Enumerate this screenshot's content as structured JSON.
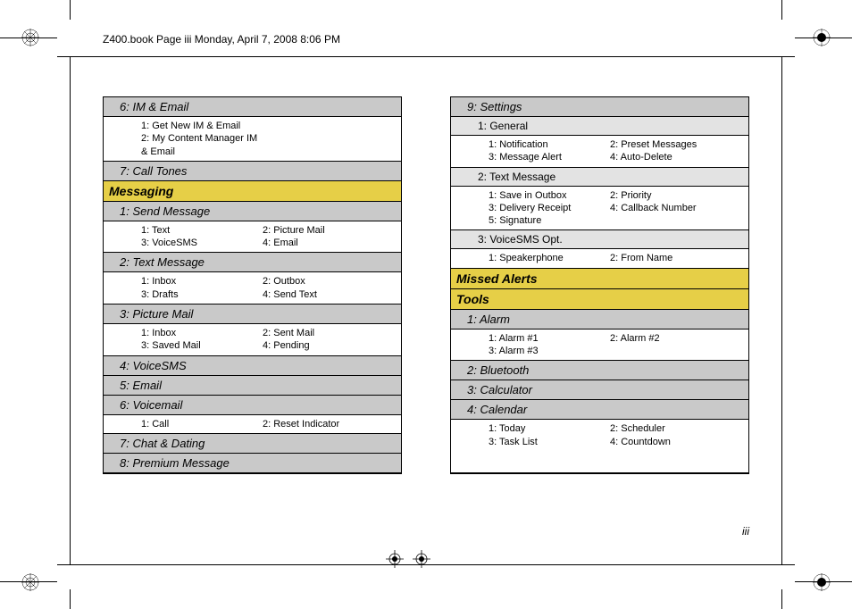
{
  "header": "Z400.book  Page iii  Monday, April 7, 2008  8:06 PM",
  "pageNum": "iii",
  "left": {
    "rows": [
      {
        "type": "lvl1",
        "text": "6: IM & Email"
      },
      {
        "type": "items",
        "cells": [
          "1: Get New IM & Email",
          "",
          "2: My Content Manager IM & Email"
        ]
      },
      {
        "type": "lvl1",
        "text": "7: Call Tones"
      },
      {
        "type": "cat",
        "text": "Messaging"
      },
      {
        "type": "lvl1",
        "text": "1: Send Message"
      },
      {
        "type": "items",
        "cells": [
          "1: Text",
          "2: Picture Mail",
          "3: VoiceSMS",
          "4: Email"
        ]
      },
      {
        "type": "lvl1",
        "text": "2: Text Message"
      },
      {
        "type": "items",
        "cells": [
          "1: Inbox",
          "2: Outbox",
          "3: Drafts",
          "4: Send Text"
        ]
      },
      {
        "type": "lvl1",
        "text": "3: Picture Mail"
      },
      {
        "type": "items",
        "cells": [
          "1: Inbox",
          "2: Sent Mail",
          "3: Saved Mail",
          "4: Pending"
        ]
      },
      {
        "type": "lvl1",
        "text": "4: VoiceSMS"
      },
      {
        "type": "lvl1",
        "text": "5: Email"
      },
      {
        "type": "lvl1",
        "text": "6: Voicemail"
      },
      {
        "type": "items",
        "cells": [
          "1: Call",
          "2: Reset Indicator"
        ]
      },
      {
        "type": "lvl1",
        "text": "7: Chat & Dating"
      },
      {
        "type": "lvl1",
        "text": "8: Premium Message"
      }
    ]
  },
  "right": {
    "rows": [
      {
        "type": "lvl1",
        "text": "9: Settings"
      },
      {
        "type": "lvl2",
        "text": "1: General"
      },
      {
        "type": "items",
        "cells": [
          "1: Notification",
          "2: Preset Messages",
          "3: Message Alert",
          "4: Auto-Delete"
        ]
      },
      {
        "type": "lvl2",
        "text": "2: Text Message"
      },
      {
        "type": "items",
        "cells": [
          "1: Save in Outbox",
          "2: Priority",
          "3: Delivery Receipt",
          "4: Callback Number",
          "5: Signature"
        ]
      },
      {
        "type": "lvl2",
        "text": "3: VoiceSMS Opt."
      },
      {
        "type": "items",
        "cells": [
          "1: Speakerphone",
          "2: From Name"
        ]
      },
      {
        "type": "cat",
        "text": "Missed Alerts"
      },
      {
        "type": "cat",
        "text": "Tools"
      },
      {
        "type": "lvl1",
        "text": "1: Alarm"
      },
      {
        "type": "items",
        "cells": [
          "1: Alarm #1",
          "2: Alarm #2",
          "3: Alarm #3"
        ]
      },
      {
        "type": "lvl1",
        "text": "2: Bluetooth"
      },
      {
        "type": "lvl1",
        "text": "3: Calculator"
      },
      {
        "type": "lvl1",
        "text": "4: Calendar"
      },
      {
        "type": "items",
        "cells": [
          "1: Today",
          "2: Scheduler",
          "3: Task List",
          "4: Countdown"
        ]
      }
    ]
  }
}
